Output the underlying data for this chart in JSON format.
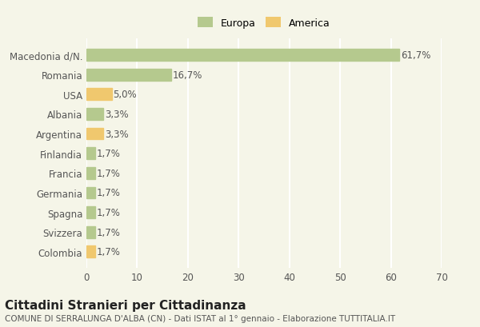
{
  "categories": [
    "Macedonia d/N.",
    "Romania",
    "USA",
    "Albania",
    "Argentina",
    "Finlandia",
    "Francia",
    "Germania",
    "Spagna",
    "Svizzera",
    "Colombia"
  ],
  "values": [
    61.7,
    16.7,
    5.0,
    3.3,
    3.3,
    1.7,
    1.7,
    1.7,
    1.7,
    1.7,
    1.7
  ],
  "labels": [
    "61,7%",
    "16,7%",
    "5,0%",
    "3,3%",
    "3,3%",
    "1,7%",
    "1,7%",
    "1,7%",
    "1,7%",
    "1,7%",
    "1,7%"
  ],
  "colors": [
    "#b5c98e",
    "#b5c98e",
    "#f0c86e",
    "#b5c98e",
    "#f0c86e",
    "#b5c98e",
    "#b5c98e",
    "#b5c98e",
    "#b5c98e",
    "#b5c98e",
    "#f0c86e"
  ],
  "legend_labels": [
    "Europa",
    "America"
  ],
  "legend_colors": [
    "#b5c98e",
    "#f0c86e"
  ],
  "xlim": [
    0,
    70
  ],
  "xticks": [
    0,
    10,
    20,
    30,
    40,
    50,
    60,
    70
  ],
  "title": "Cittadini Stranieri per Cittadinanza",
  "subtitle": "COMUNE DI SERRALUNGA D'ALBA (CN) - Dati ISTAT al 1° gennaio - Elaborazione TUTTITALIA.IT",
  "background_color": "#f5f5e8",
  "grid_color": "#ffffff",
  "bar_height": 0.6,
  "label_fontsize": 8.5,
  "tick_fontsize": 8.5,
  "title_fontsize": 11,
  "subtitle_fontsize": 7.5
}
